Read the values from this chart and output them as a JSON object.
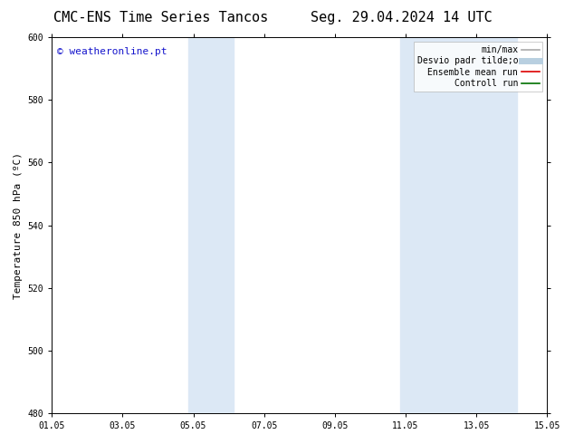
{
  "title_left": "CMC-ENS Time Series Tancos",
  "title_right": "Seg. 29.04.2024 14 UTC",
  "ylabel": "Temperature 850 hPa (ºC)",
  "ylim": [
    480,
    600
  ],
  "yticks": [
    480,
    500,
    520,
    540,
    560,
    580,
    600
  ],
  "xtick_labels": [
    "01.05",
    "03.05",
    "05.05",
    "07.05",
    "09.05",
    "11.05",
    "13.05",
    "15.05"
  ],
  "xtick_positions": [
    0,
    2,
    4,
    6,
    8,
    10,
    12,
    14
  ],
  "xlim": [
    0,
    14
  ],
  "shaded_regions": [
    {
      "xstart": 3.85,
      "xend": 5.15,
      "color": "#dce8f5"
    },
    {
      "xstart": 9.85,
      "xend": 13.15,
      "color": "#dce8f5"
    }
  ],
  "watermark_text": "© weatheronline.pt",
  "watermark_color": "#1515cc",
  "background_color": "#ffffff",
  "legend_entries": [
    {
      "label": "min/max",
      "color": "#aaaaaa",
      "lw": 1.2,
      "style": "solid"
    },
    {
      "label": "Desvio padr tilde;o",
      "color": "#b8cfe0",
      "lw": 5,
      "style": "solid"
    },
    {
      "label": "Ensemble mean run",
      "color": "#dd0000",
      "lw": 1.2,
      "style": "solid"
    },
    {
      "label": "Controll run",
      "color": "#007000",
      "lw": 1.2,
      "style": "solid"
    }
  ],
  "title_fontsize": 11,
  "ylabel_fontsize": 8,
  "tick_fontsize": 7,
  "legend_fontsize": 7,
  "watermark_fontsize": 8
}
